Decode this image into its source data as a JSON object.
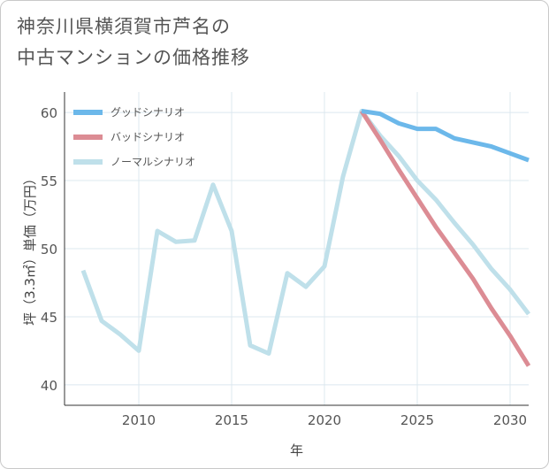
{
  "title": {
    "line1": "神奈川県横須賀市芦名の",
    "line2": "中古マンションの価格推移"
  },
  "chart_data": {
    "type": "line",
    "title": "神奈川県横須賀市芦名の中古マンションの価格推移",
    "xlabel": "年",
    "ylabel": "坪（3.3㎡）単価（万円）",
    "xlim": [
      2006,
      2031
    ],
    "ylim": [
      38.5,
      61.5
    ],
    "xticks": [
      2010,
      2015,
      2020,
      2025,
      2030
    ],
    "yticks": [
      40,
      45,
      50,
      55,
      60
    ],
    "grid": true,
    "legend_position": "top-left",
    "series": [
      {
        "name": "グッドシナリオ",
        "color": "#6cb8ea",
        "x": [
          2022,
          2023,
          2024,
          2025,
          2026,
          2027,
          2028,
          2029,
          2030,
          2031
        ],
        "values": [
          60.1,
          59.9,
          59.2,
          58.8,
          58.8,
          58.1,
          57.8,
          57.5,
          57.0,
          56.5
        ]
      },
      {
        "name": "バッドシナリオ",
        "color": "#dc8c94",
        "x": [
          2022,
          2023,
          2024,
          2025,
          2026,
          2027,
          2028,
          2029,
          2030,
          2031
        ],
        "values": [
          60.1,
          58.0,
          55.8,
          53.7,
          51.6,
          49.7,
          47.8,
          45.6,
          43.6,
          41.4
        ]
      },
      {
        "name": "ノーマルシナリオ",
        "color": "#bfe0ea",
        "x": [
          2007,
          2008,
          2009,
          2010,
          2011,
          2012,
          2013,
          2014,
          2015,
          2016,
          2017,
          2018,
          2019,
          2020,
          2021,
          2022,
          2023,
          2024,
          2025,
          2026,
          2027,
          2028,
          2029,
          2030,
          2031
        ],
        "values": [
          48.4,
          44.7,
          43.7,
          42.5,
          51.3,
          50.5,
          50.6,
          54.7,
          51.3,
          42.9,
          42.3,
          48.2,
          47.2,
          48.7,
          55.3,
          60.1,
          58.3,
          56.8,
          55.0,
          53.6,
          51.9,
          50.3,
          48.5,
          47.0,
          45.2
        ]
      }
    ]
  }
}
